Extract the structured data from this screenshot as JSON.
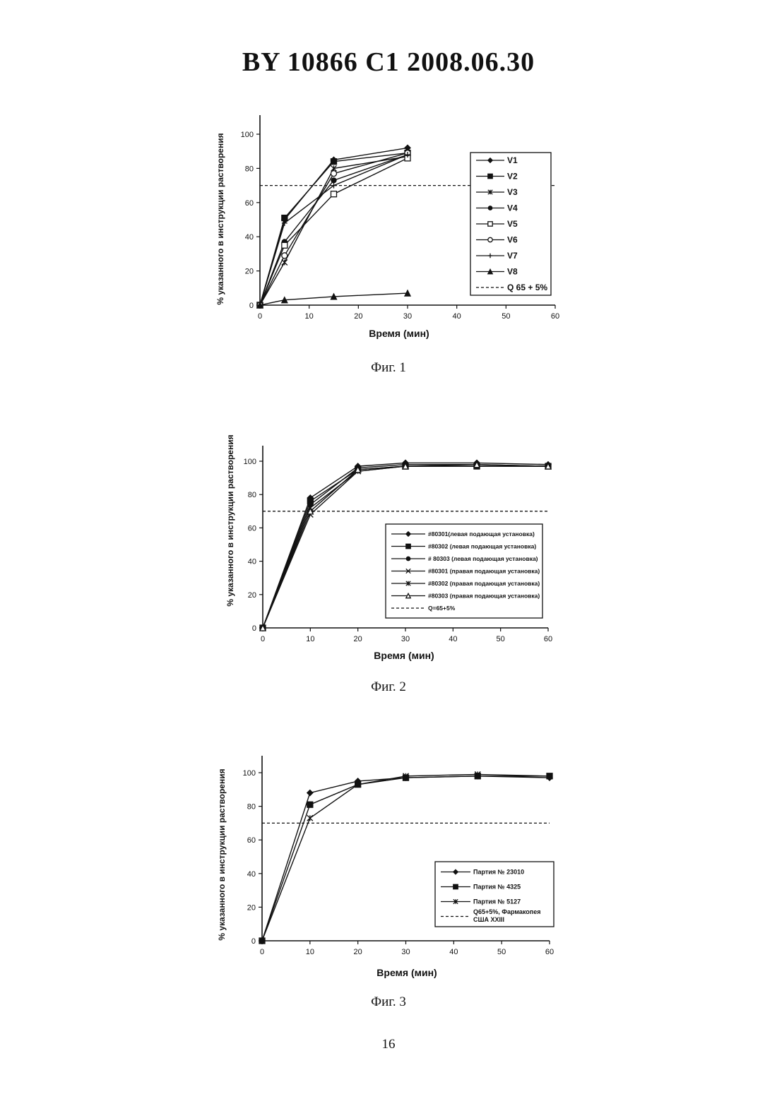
{
  "header": "BY 10866 C1 2008.06.30",
  "page_number": "16",
  "chart_data": [
    {
      "type": "line",
      "caption": "Фиг. 1",
      "ylabel": "% указанного в инструкции растворения",
      "xlabel": "Время (мин)",
      "xlim": [
        0,
        60
      ],
      "ylim": [
        0,
        100
      ],
      "xticks": [
        0,
        10,
        20,
        30,
        40,
        50,
        60
      ],
      "yticks": [
        0,
        20,
        40,
        60,
        80,
        100
      ],
      "legend_position": "right",
      "x": [
        0,
        5,
        15,
        30
      ],
      "series": [
        {
          "name": "V1",
          "marker": "diamond",
          "values": [
            0,
            50,
            85,
            92
          ]
        },
        {
          "name": "V2",
          "marker": "square",
          "values": [
            0,
            51,
            84,
            89
          ]
        },
        {
          "name": "V3",
          "marker": "xstar",
          "values": [
            0,
            25,
            80,
            87
          ]
        },
        {
          "name": "V4",
          "marker": "dot",
          "values": [
            0,
            37,
            73,
            88
          ]
        },
        {
          "name": "V5",
          "marker": "opensquare",
          "values": [
            0,
            35,
            65,
            86
          ]
        },
        {
          "name": "V6",
          "marker": "opencircle",
          "values": [
            0,
            29,
            77,
            89
          ]
        },
        {
          "name": "V7",
          "marker": "plus",
          "values": [
            0,
            48,
            70,
            88
          ]
        },
        {
          "name": "V8",
          "marker": "triangle",
          "values": [
            0,
            3,
            5,
            7
          ]
        }
      ],
      "reference_line": {
        "name": "Q 65 + 5%",
        "value": 70
      }
    },
    {
      "type": "line",
      "caption": "Фиг. 2",
      "ylabel": "% указанного в инструкции растворения",
      "xlabel": "Время (мин)",
      "xlim": [
        0,
        60
      ],
      "ylim": [
        0,
        100
      ],
      "xticks": [
        0,
        10,
        20,
        30,
        40,
        50,
        60
      ],
      "yticks": [
        0,
        20,
        40,
        60,
        80,
        100
      ],
      "legend_position": "center-right",
      "x": [
        0,
        10,
        20,
        30,
        45,
        60
      ],
      "series": [
        {
          "name": "#80301(левая подающая установка)",
          "marker": "diamond",
          "values": [
            0,
            78,
            97,
            99,
            99,
            98
          ]
        },
        {
          "name": "#80302 (левая подающая установка)",
          "marker": "square",
          "values": [
            0,
            76,
            95,
            97,
            97,
            97
          ]
        },
        {
          "name": "# 80303 (левая подающая установка)",
          "marker": "dot",
          "values": [
            0,
            74,
            96,
            98,
            98,
            97
          ]
        },
        {
          "name": "#80301 (правая подающая установка)",
          "marker": "x",
          "values": [
            0,
            68,
            94,
            97,
            97,
            97
          ]
        },
        {
          "name": "#80302 (правая подающая установка)",
          "marker": "xstar",
          "values": [
            0,
            72,
            94,
            97,
            97,
            97
          ]
        },
        {
          "name": "#80303 (правая подающая установка)",
          "marker": "opentriangle",
          "values": [
            0,
            70,
            95,
            97,
            98,
            97
          ]
        }
      ],
      "reference_line": {
        "name": "Q=65+5%",
        "value": 70
      }
    },
    {
      "type": "line",
      "caption": "Фиг. 3",
      "ylabel": "% указанного в инструкции растворения",
      "xlabel": "Время (мин)",
      "xlim": [
        0,
        60
      ],
      "ylim": [
        0,
        100
      ],
      "xticks": [
        0,
        10,
        20,
        30,
        40,
        50,
        60
      ],
      "yticks": [
        0,
        20,
        40,
        60,
        80,
        100
      ],
      "legend_position": "bottom-right",
      "x": [
        0,
        10,
        20,
        30,
        45,
        60
      ],
      "series": [
        {
          "name": "Партия № 23010",
          "marker": "diamond",
          "values": [
            0,
            88,
            95,
            97,
            98,
            97
          ]
        },
        {
          "name": "Партия № 4325",
          "marker": "square",
          "values": [
            0,
            81,
            93,
            97,
            98,
            98
          ]
        },
        {
          "name": "Партия № 5127",
          "marker": "xstar",
          "values": [
            0,
            73,
            93,
            98,
            99,
            98
          ]
        }
      ],
      "reference_line": {
        "name": "Q65+5%, Фармакопея США XXIII",
        "label_lines": [
          "Q65+5%, Фармакопея",
          "США XXIII"
        ],
        "value": 70
      }
    }
  ]
}
